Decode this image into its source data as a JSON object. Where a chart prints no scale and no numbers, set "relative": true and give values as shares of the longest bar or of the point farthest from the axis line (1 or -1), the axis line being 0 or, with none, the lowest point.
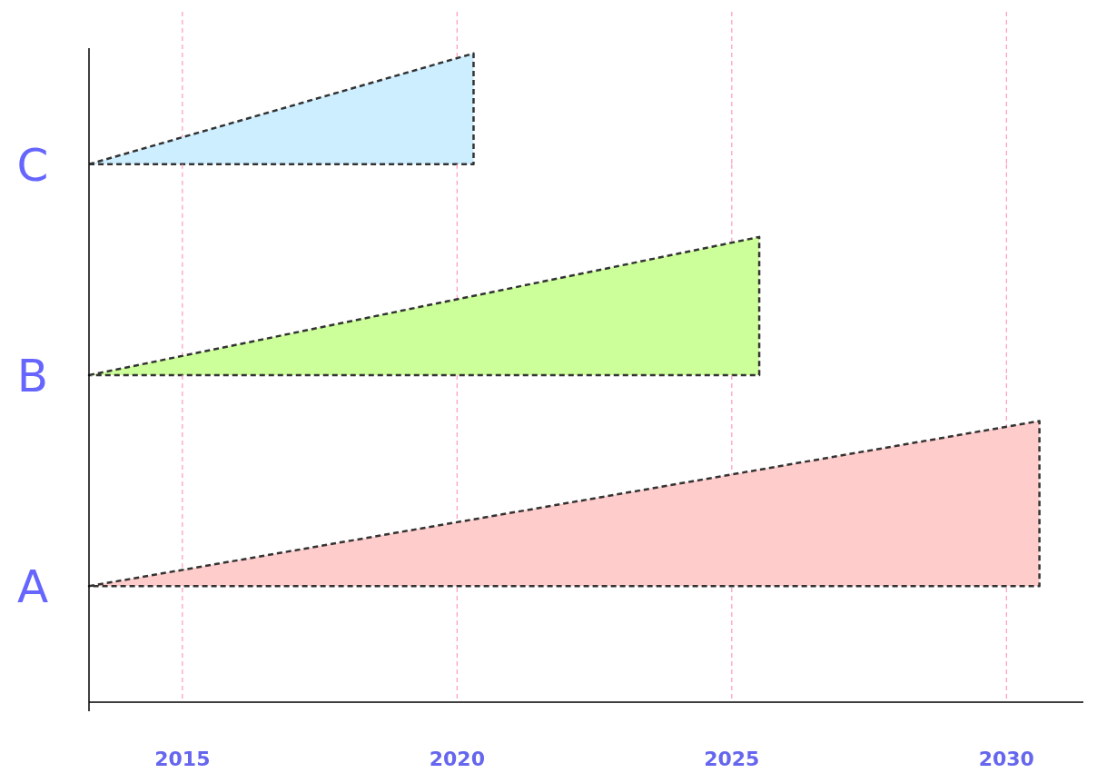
{
  "chart_data": [
    {
      "type": "area",
      "ylabel": "C",
      "relative": true,
      "x": [
        2013.3,
        2020.3
      ],
      "values": [
        0,
        1
      ],
      "color": "#cceeff",
      "xlim": [
        2013.3,
        2030
      ],
      "xticks": [
        2015,
        2020,
        2025,
        2030
      ],
      "tick_labels": false,
      "grid": "x",
      "line_style": "dashed"
    },
    {
      "type": "area",
      "ylabel": "B",
      "relative": true,
      "x": [
        2013.3,
        2025.5
      ],
      "values": [
        0,
        1
      ],
      "color": "#ccff99",
      "xlim": [
        2013.3,
        2030
      ],
      "xticks": [
        2015,
        2020,
        2025,
        2030
      ],
      "tick_labels": false,
      "grid": "x",
      "line_style": "dashed"
    },
    {
      "type": "area",
      "ylabel": "A",
      "relative": true,
      "x": [
        2013.3,
        2030.6
      ],
      "values": [
        0,
        1
      ],
      "color": "#ffcccc",
      "xlim": [
        2013.3,
        2031.4
      ],
      "xticks": [
        2015,
        2020,
        2025,
        2030
      ],
      "tick_labels": "x",
      "grid": "x",
      "line_style": "dashed"
    }
  ]
}
